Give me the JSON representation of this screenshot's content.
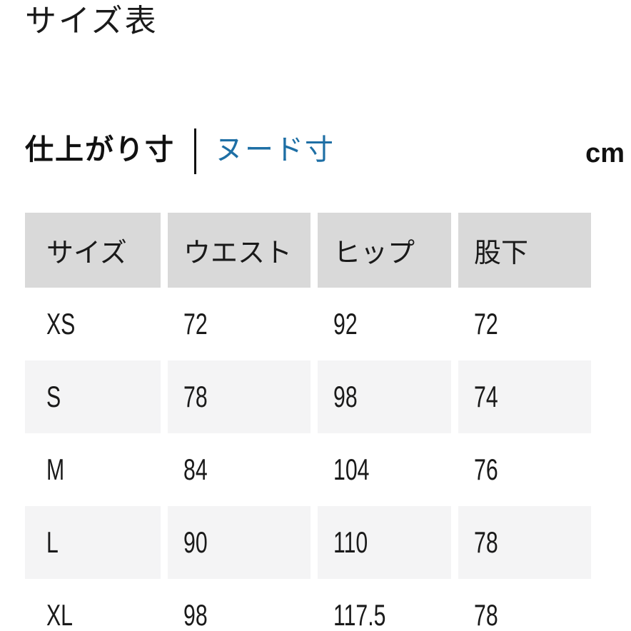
{
  "page": {
    "title": "サイズ表",
    "unit": "cm"
  },
  "tabs": {
    "finished_label": "仕上がり寸",
    "nude_label": "ヌード寸",
    "active": "仕上がり寸"
  },
  "colors": {
    "link_blue": "#1e6fa5",
    "header_gray": "#d9d9d9",
    "stripe_gray": "#f4f4f5",
    "text": "#1a1a1a"
  },
  "table": {
    "columns": [
      "サイズ",
      "ウエスト",
      "ヒップ",
      "股下"
    ],
    "rows": [
      [
        "XS",
        "72",
        "92",
        "72"
      ],
      [
        "S",
        "78",
        "98",
        "74"
      ],
      [
        "M",
        "84",
        "104",
        "76"
      ],
      [
        "L",
        "90",
        "110",
        "78"
      ],
      [
        "XL",
        "98",
        "117.5",
        "78"
      ]
    ],
    "unit": "cm"
  }
}
